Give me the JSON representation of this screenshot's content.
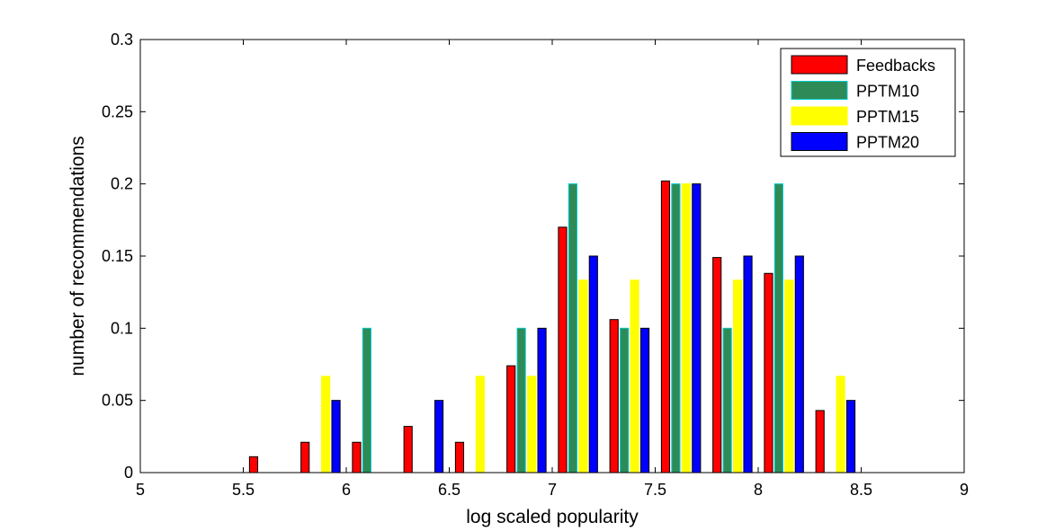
{
  "chart_data": {
    "type": "bar",
    "xlabel": "log scaled popularity",
    "ylabel": "number of recommendations",
    "xlim": [
      5,
      9
    ],
    "ylim": [
      0,
      0.3
    ],
    "x_ticks": [
      "5",
      "5.5",
      "6",
      "6.5",
      "7",
      "7.5",
      "8",
      "8.5",
      "9"
    ],
    "y_ticks": [
      "0",
      "0.05",
      "0.1",
      "0.15",
      "0.2",
      "0.25",
      "0.3"
    ],
    "bin_centers": [
      5.125,
      5.375,
      5.625,
      5.875,
      6.125,
      6.375,
      6.625,
      6.875,
      7.125,
      7.375,
      7.625,
      7.875,
      8.125,
      8.375,
      8.625,
      8.875
    ],
    "legend_position": "top-right",
    "series": [
      {
        "name": "Feedbacks",
        "color": "#ff0000",
        "edge": "#000000",
        "values": [
          0,
          0,
          0.011,
          0.021,
          0.021,
          0.032,
          0.021,
          0.074,
          0.17,
          0.106,
          0.202,
          0.149,
          0.138,
          0.043,
          0,
          0
        ]
      },
      {
        "name": "PPTM10",
        "color": "#2e8b57",
        "edge": "#00cccc",
        "values": [
          0,
          0,
          0,
          0,
          0.1,
          0,
          0,
          0.1,
          0.2,
          0.1,
          0.2,
          0.1,
          0.2,
          0,
          0,
          0
        ]
      },
      {
        "name": "PPTM15",
        "color": "#ffff00",
        "edge": "#ffff00",
        "values": [
          0,
          0,
          0,
          0.0667,
          0,
          0,
          0.0667,
          0.0667,
          0.1333,
          0.1333,
          0.2,
          0.1333,
          0.1333,
          0.0667,
          0,
          0
        ]
      },
      {
        "name": "PPTM20",
        "color": "#0000ff",
        "edge": "#000000",
        "values": [
          0,
          0,
          0,
          0.05,
          0,
          0.05,
          0,
          0.1,
          0.15,
          0.1,
          0.2,
          0.15,
          0.15,
          0.05,
          0,
          0
        ]
      }
    ]
  }
}
